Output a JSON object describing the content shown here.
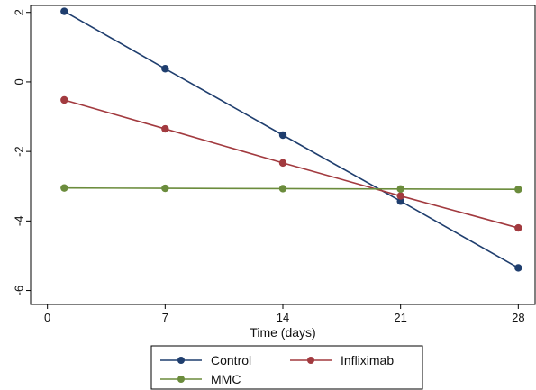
{
  "chart_data": {
    "type": "line",
    "title": "",
    "xlabel": "Time (days)",
    "ylabel": "",
    "x": [
      1,
      7,
      14,
      21,
      28
    ],
    "x_ticks": [
      0,
      7,
      14,
      21,
      28
    ],
    "x_tick_labels": [
      "0",
      "7",
      "14",
      "21",
      "28"
    ],
    "y_ticks": [
      2,
      0,
      -2,
      -4,
      -6
    ],
    "y_tick_labels": [
      "2",
      "0",
      "-2",
      "-4",
      "-6"
    ],
    "xlim": [
      -1,
      29
    ],
    "ylim": [
      -6.4,
      2.2
    ],
    "grid": false,
    "legend_position": "bottom",
    "series": [
      {
        "name": "Control",
        "color": "#1f3e6e",
        "values": [
          2.03,
          0.38,
          -1.53,
          -3.43,
          -5.35
        ]
      },
      {
        "name": "Infliximab",
        "color": "#a23a3f",
        "values": [
          -0.52,
          -1.35,
          -2.33,
          -3.28,
          -4.2
        ]
      },
      {
        "name": "MMC",
        "color": "#6b8c3c",
        "values": [
          -3.05,
          -3.06,
          -3.07,
          -3.08,
          -3.09
        ]
      }
    ]
  }
}
